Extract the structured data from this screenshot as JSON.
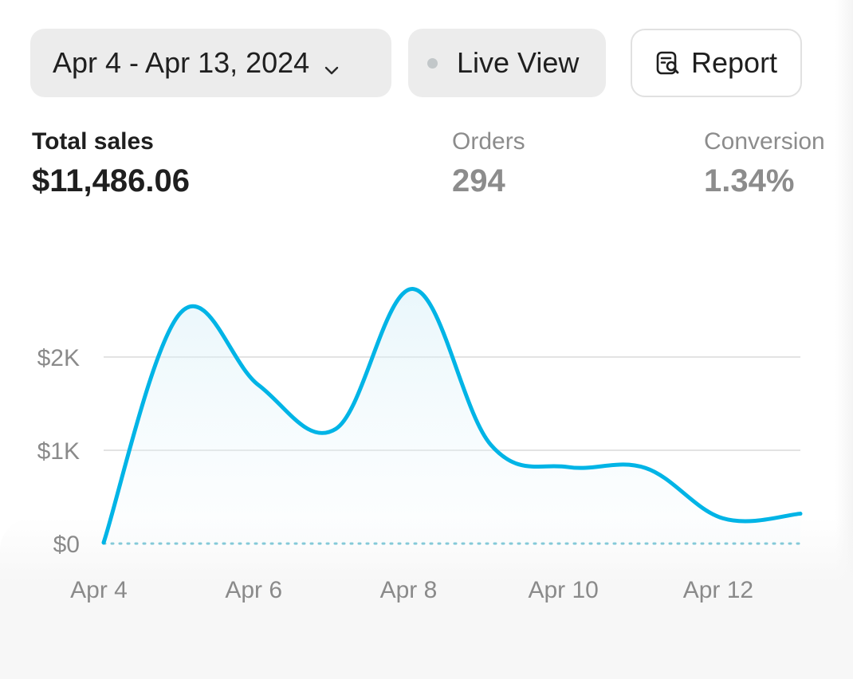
{
  "toolbar": {
    "date_range_label": "Apr 4 - Apr 13, 2024",
    "live_view_label": "Live View",
    "report_label": "Report"
  },
  "metrics": {
    "total_sales": {
      "label": "Total sales",
      "value": "$11,486.06"
    },
    "orders": {
      "label": "Orders",
      "value": "294"
    },
    "conversion": {
      "label": "Conversion",
      "value": "1.34%"
    }
  },
  "colors": {
    "line": "#00b4e6",
    "button_bg": "#ececec",
    "muted_text": "#8c8c8c"
  },
  "chart_data": {
    "type": "line",
    "title": "",
    "xlabel": "",
    "ylabel": "",
    "x": [
      "Apr 4",
      "Apr 5",
      "Apr 6",
      "Apr 7",
      "Apr 8",
      "Apr 9",
      "Apr 10",
      "Apr 11",
      "Apr 12",
      "Apr 13"
    ],
    "x_tick_labels": [
      "Apr 4",
      "Apr 6",
      "Apr 8",
      "Apr 10",
      "Apr 12"
    ],
    "series": [
      {
        "values": [
          10,
          2480,
          1700,
          1230,
          2730,
          1060,
          820,
          810,
          270,
          320
        ]
      }
    ],
    "ylim": [
      0,
      2800
    ],
    "y_ticks": [
      0,
      1000,
      2000
    ],
    "y_tick_labels": [
      "$0",
      "$1K",
      "$2K"
    ],
    "grid": true,
    "baseline_style": "dotted"
  }
}
